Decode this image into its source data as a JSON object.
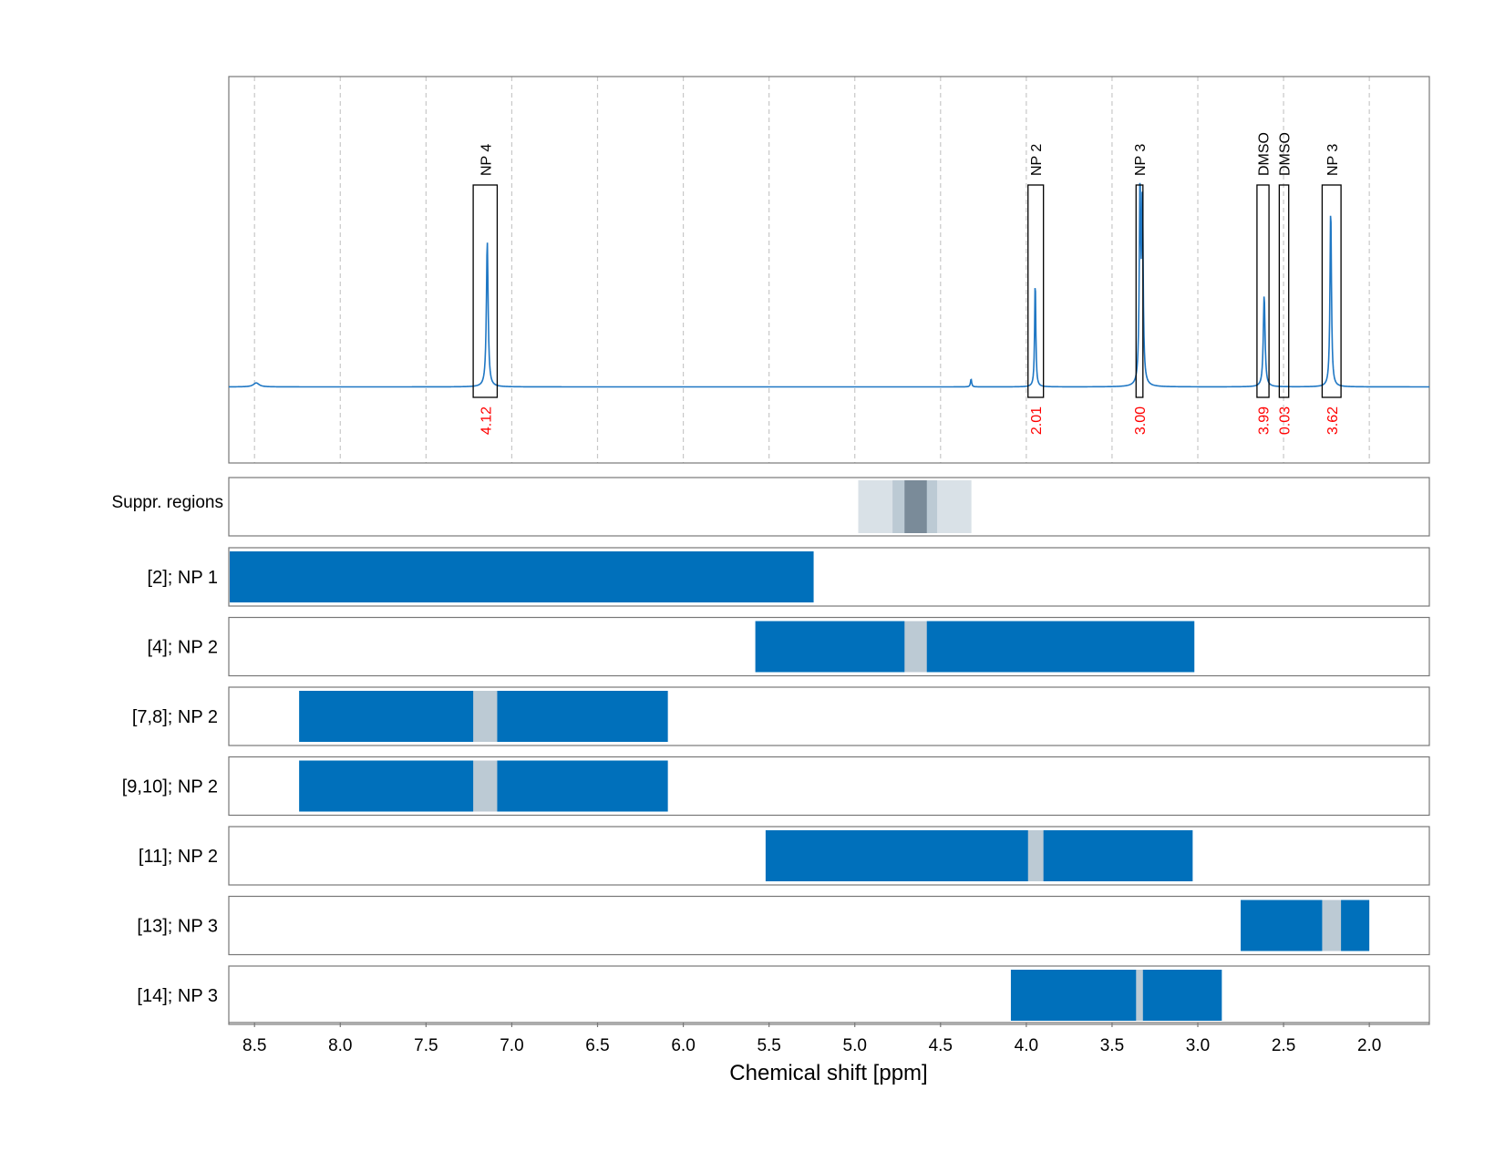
{
  "chart_data": {
    "type": "line",
    "xlabel": "Chemical shift [ppm]",
    "xlim": [
      8.65,
      1.65
    ],
    "x_reversed": true,
    "x_ticks": [
      8.5,
      8.0,
      7.5,
      7.0,
      6.5,
      6.0,
      5.5,
      5.0,
      4.5,
      4.0,
      3.5,
      3.0,
      2.5,
      2.0
    ],
    "x_tick_labels": [
      "8.5",
      "8.0",
      "7.5",
      "7.0",
      "6.5",
      "6.0",
      "5.5",
      "5.0",
      "4.5",
      "4.0",
      "3.5",
      "3.0",
      "2.5",
      "2.0"
    ],
    "grid": true,
    "colors": {
      "spectrum": "#1f77c4",
      "bar": "#0070bb",
      "bar_gap": "#bccad4",
      "suppr_light": "#d9e1e7",
      "suppr_mid": "#bccad4",
      "suppr_dark": "#7a8b99",
      "integral_label": "#ff0000",
      "peak_box": "#000000"
    },
    "spectrum": {
      "baseline": 0,
      "ylim": [
        -0.38,
        1.55
      ],
      "peaks": [
        {
          "x": 8.49,
          "height": 0.02,
          "width": 0.02
        },
        {
          "x": 7.143,
          "height": 0.73,
          "width": 0.006
        },
        {
          "x": 4.322,
          "height": 0.04,
          "width": 0.004
        },
        {
          "x": 3.948,
          "height": 0.54,
          "width": 0.004
        },
        {
          "x": 3.337,
          "height": 0.97,
          "width": 0.005
        },
        {
          "x": 3.323,
          "height": 0.92,
          "width": 0.005
        },
        {
          "x": 2.613,
          "height": 0.46,
          "width": 0.006
        },
        {
          "x": 2.225,
          "height": 0.9,
          "width": 0.005
        }
      ]
    },
    "peak_annotations": [
      {
        "label": "NP 4",
        "integral": "4.12",
        "x_from": 7.225,
        "x_to": 7.085
      },
      {
        "label": "NP 2",
        "integral": "2.01",
        "x_from": 3.99,
        "x_to": 3.9
      },
      {
        "label": "NP 3",
        "integral": "3.00",
        "x_from": 3.36,
        "x_to": 3.32
      },
      {
        "label": "DMSO",
        "integral": "3.99",
        "x_from": 2.655,
        "x_to": 2.585
      },
      {
        "label": "DMSO",
        "integral": "0.03",
        "x_from": 2.525,
        "x_to": 2.47
      },
      {
        "label": "NP 3",
        "integral": "3.62",
        "x_from": 2.275,
        "x_to": 2.165
      }
    ],
    "suppression": {
      "label": "Suppr. regions",
      "regions": [
        {
          "x_from": 4.98,
          "x_to": 4.32,
          "shade": "light"
        },
        {
          "x_from": 4.78,
          "x_to": 4.52,
          "shade": "mid"
        },
        {
          "x_from": 4.71,
          "x_to": 4.58,
          "shade": "dark"
        }
      ]
    },
    "rows": [
      {
        "label": "[2]; NP 1",
        "x_from": 8.65,
        "x_to": 5.24,
        "gaps": []
      },
      {
        "label": "[4]; NP 2",
        "x_from": 5.58,
        "x_to": 3.02,
        "gaps": [
          {
            "x_from": 4.71,
            "x_to": 4.58
          }
        ]
      },
      {
        "label": "[7,8]; NP 2",
        "x_from": 8.24,
        "x_to": 6.09,
        "gaps": [
          {
            "x_from": 7.225,
            "x_to": 7.085
          }
        ]
      },
      {
        "label": "[9,10]; NP 2",
        "x_from": 8.24,
        "x_to": 6.09,
        "gaps": [
          {
            "x_from": 7.225,
            "x_to": 7.085
          }
        ]
      },
      {
        "label": "[11]; NP 2",
        "x_from": 5.52,
        "x_to": 3.03,
        "gaps": [
          {
            "x_from": 3.99,
            "x_to": 3.9
          }
        ]
      },
      {
        "label": "[13]; NP 3",
        "x_from": 2.75,
        "x_to": 2.0,
        "gaps": [
          {
            "x_from": 2.275,
            "x_to": 2.165
          }
        ]
      },
      {
        "label": "[14]; NP 3",
        "x_from": 4.09,
        "x_to": 2.86,
        "gaps": [
          {
            "x_from": 3.36,
            "x_to": 3.32
          }
        ]
      }
    ]
  }
}
